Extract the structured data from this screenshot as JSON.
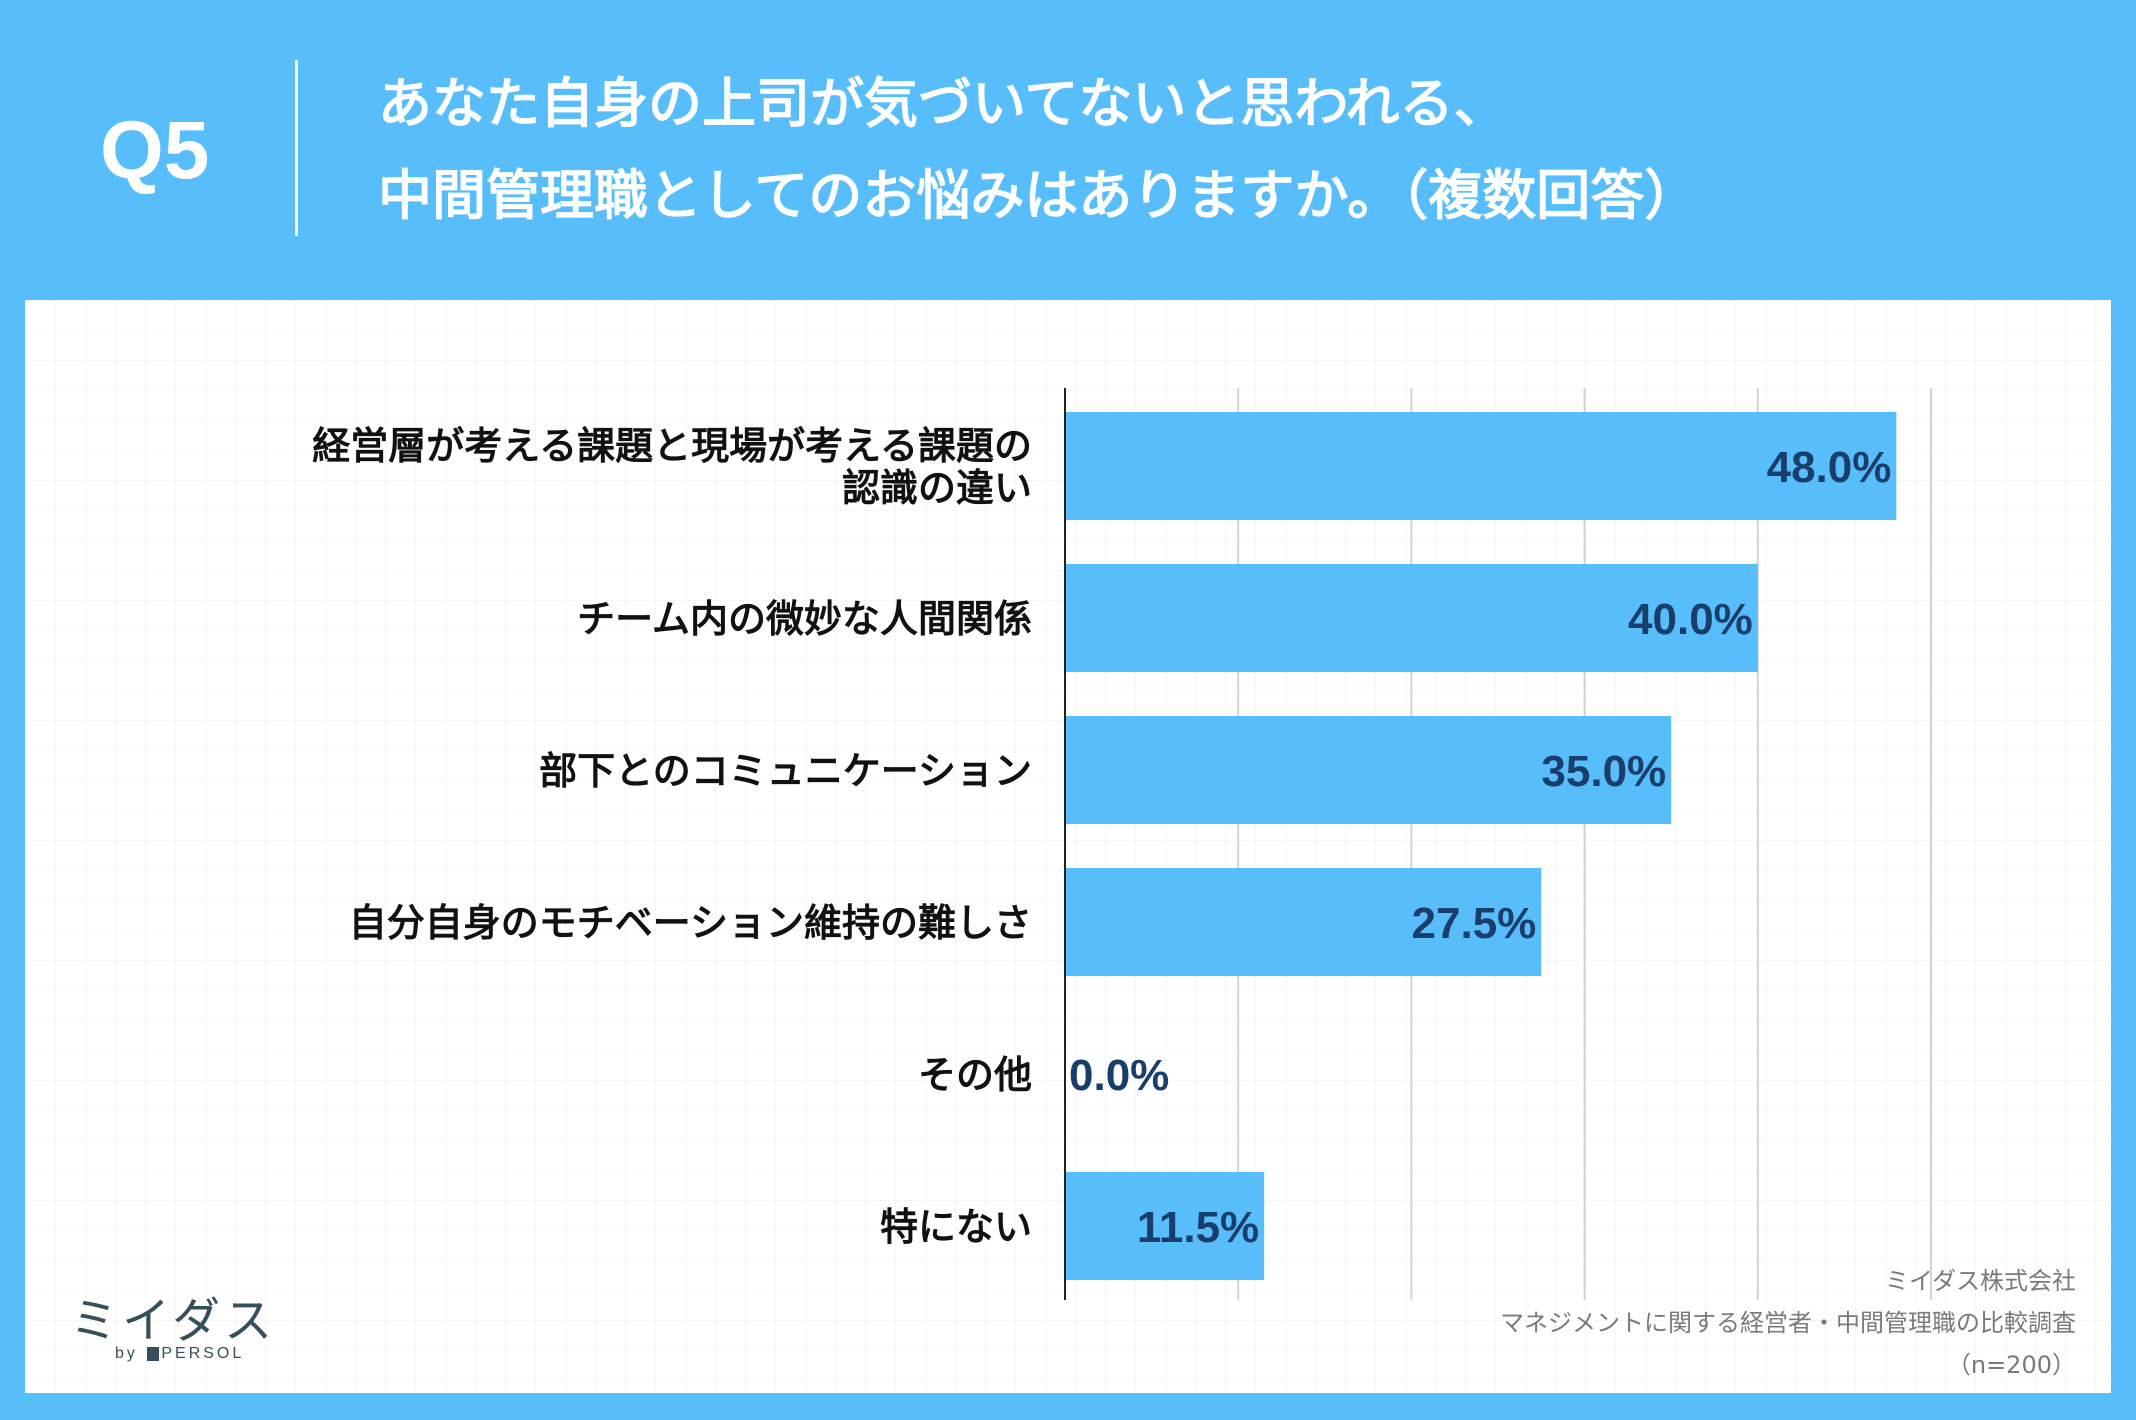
{
  "header": {
    "question_label": "Q5",
    "title_line1": "あなた自身の上司が気づいてないと思われる、",
    "title_line2": "中間管理職としてのお悩みはありますか。（複数回答）"
  },
  "chart_data": {
    "type": "bar",
    "orientation": "horizontal",
    "categories": [
      [
        "経営層が考える課題と現場が考える課題の",
        "認識の違い"
      ],
      [
        "チーム内の微妙な人間関係"
      ],
      [
        "部下とのコミュニケーション"
      ],
      [
        "自分自身のモチベーション維持の難しさ"
      ],
      [
        "その他"
      ],
      [
        "特にない"
      ]
    ],
    "values": [
      48.0,
      40.0,
      35.0,
      27.5,
      0.0,
      11.5
    ],
    "value_labels": [
      "48.0%",
      "40.0%",
      "35.0%",
      "27.5%",
      "0.0%",
      "11.5%"
    ],
    "xlim": [
      0,
      50
    ],
    "gridlines": true,
    "bar_color": "#57bdfb",
    "label_color": "#1a3e6b"
  },
  "footer": {
    "source_line1": "ミイダス株式会社",
    "source_line2": "マネジメントに関する経営者・中間管理職の比較調査",
    "source_line3": "（n=200）"
  },
  "logo": {
    "main": "ミイダス",
    "by": "by",
    "sub": "PERSOL"
  }
}
